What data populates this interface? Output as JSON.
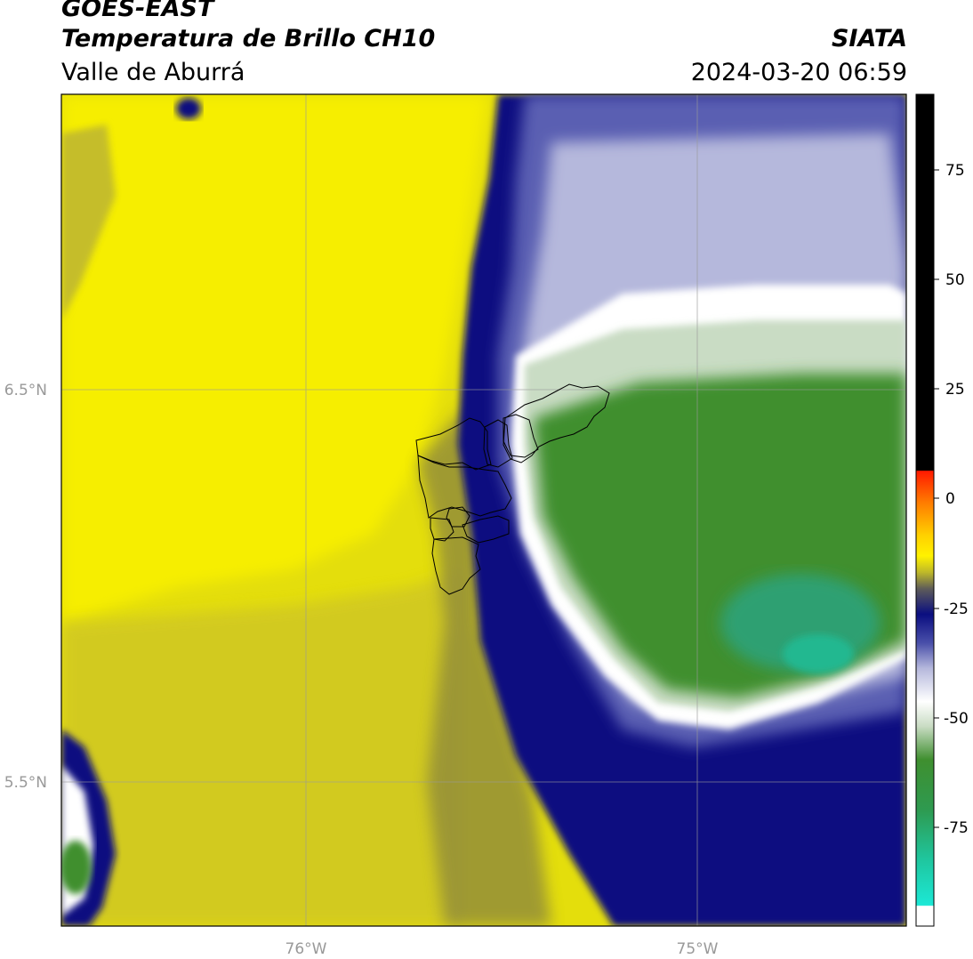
{
  "header": {
    "satellite": "GOES-EAST",
    "product": "Temperatura de Brillo CH10",
    "region": "Valle de Aburrá",
    "agency": "SIATA",
    "datetime": "2024-03-20 06:59"
  },
  "map": {
    "lon_labels": [
      "76°W",
      "75°W"
    ],
    "lat_labels": [
      "6.5°N",
      "5.5°N"
    ]
  },
  "colorbar": {
    "tick_labels": [
      "75",
      "50",
      "25",
      "0",
      "-25",
      "-50",
      "-75"
    ],
    "segments": [
      {
        "label": "warm",
        "color": "#000000"
      },
      {
        "label": "red",
        "color": "#ff2a00"
      },
      {
        "label": "orange",
        "color": "#ff9900"
      },
      {
        "label": "yellow",
        "color": "#fff200"
      },
      {
        "label": "olive",
        "color": "#8f8a3a"
      },
      {
        "label": "navy",
        "color": "#0a0e80"
      },
      {
        "label": "lavender",
        "color": "#b5b8dc"
      },
      {
        "label": "white",
        "color": "#ffffff"
      },
      {
        "label": "green",
        "color": "#3f8f2f"
      },
      {
        "label": "teal",
        "color": "#22b37f"
      },
      {
        "label": "cyan",
        "color": "#1ce8d6"
      },
      {
        "label": "coldest",
        "color": "#ffffff"
      }
    ]
  }
}
